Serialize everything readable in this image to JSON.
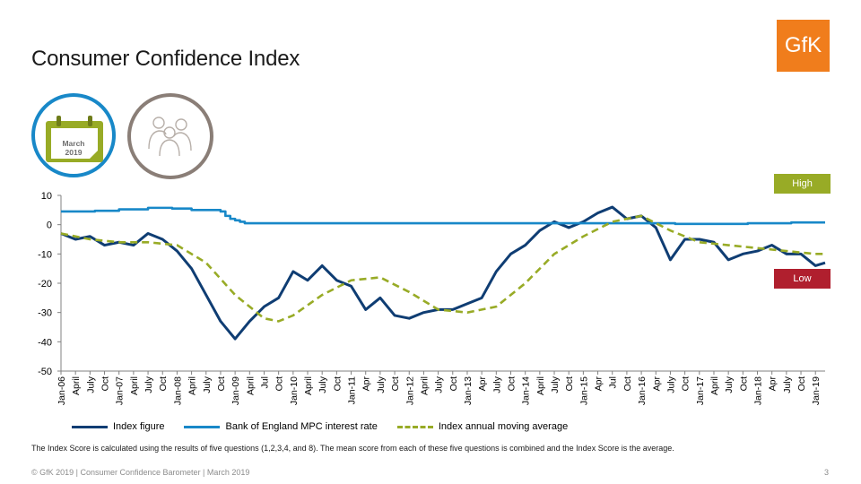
{
  "title": "Consumer Confidence Index",
  "logo": "GfK",
  "calendar": {
    "month": "March",
    "year": "2019"
  },
  "badges": {
    "high": "High",
    "low": "Low"
  },
  "note": "The Index Score is calculated using the results of five questions (1,2,3,4, and 8). The mean score from each of these five questions is combined and the Index Score is the average.",
  "footer": "© GfK 2019 | Consumer Confidence Barometer | March 2019",
  "page_number": "3",
  "colors": {
    "index": "#0f3d73",
    "rate": "#1888c8",
    "moving_avg": "#98ab26",
    "accent": "#f07d1c"
  },
  "chart_data": {
    "type": "line",
    "ylim": [
      -50,
      10
    ],
    "yticks": [
      10,
      0,
      -10,
      -20,
      -30,
      -40,
      -50
    ],
    "x_start": "Jan-06",
    "x_end": "Mar-19",
    "x_tick_labels": [
      "Jan-06",
      "April",
      "July",
      "Oct",
      "Jan-07",
      "April",
      "July",
      "Oct",
      "Jan-08",
      "April",
      "July",
      "Oct",
      "Jan-09",
      "April",
      "Jul",
      "Oct",
      "Jan-10",
      "April",
      "July",
      "Oct",
      "Jan-11",
      "Apr",
      "July",
      "Oct",
      "Jan-12",
      "April",
      "July",
      "Oct",
      "Jan-13",
      "Apr",
      "July",
      "Oct",
      "Jan-14",
      "April",
      "July",
      "Oct",
      "Jan-15",
      "Apr",
      "Jul",
      "Oct",
      "Jan-16",
      "Apr",
      "July",
      "Oct",
      "Jan-17",
      "April",
      "July",
      "Oct",
      "Jan-18",
      "Apr",
      "July",
      "Oct",
      "Jan-19"
    ],
    "series": [
      {
        "name": "Index figure",
        "style": "solid",
        "points": [
          [
            "Jan-06",
            -3
          ],
          [
            "Apr-06",
            -5
          ],
          [
            "Jul-06",
            -4
          ],
          [
            "Oct-06",
            -7
          ],
          [
            "Jan-07",
            -6
          ],
          [
            "Apr-07",
            -7
          ],
          [
            "Jul-07",
            -3
          ],
          [
            "Oct-07",
            -5
          ],
          [
            "Jan-08",
            -9
          ],
          [
            "Apr-08",
            -15
          ],
          [
            "Jul-08",
            -24
          ],
          [
            "Oct-08",
            -33
          ],
          [
            "Jan-09",
            -39
          ],
          [
            "Apr-09",
            -33
          ],
          [
            "Jul-09",
            -28
          ],
          [
            "Oct-09",
            -25
          ],
          [
            "Jan-10",
            -16
          ],
          [
            "Apr-10",
            -19
          ],
          [
            "Jul-10",
            -14
          ],
          [
            "Oct-10",
            -19
          ],
          [
            "Jan-11",
            -21
          ],
          [
            "Apr-11",
            -29
          ],
          [
            "Jul-11",
            -25
          ],
          [
            "Oct-11",
            -31
          ],
          [
            "Jan-12",
            -32
          ],
          [
            "Apr-12",
            -30
          ],
          [
            "Jul-12",
            -29
          ],
          [
            "Oct-12",
            -29
          ],
          [
            "Jan-13",
            -27
          ],
          [
            "Apr-13",
            -25
          ],
          [
            "Jul-13",
            -16
          ],
          [
            "Oct-13",
            -10
          ],
          [
            "Jan-14",
            -7
          ],
          [
            "Apr-14",
            -2
          ],
          [
            "Jul-14",
            1
          ],
          [
            "Oct-14",
            -1
          ],
          [
            "Jan-15",
            1
          ],
          [
            "Apr-15",
            4
          ],
          [
            "Jul-15",
            6
          ],
          [
            "Oct-15",
            2
          ],
          [
            "Jan-16",
            3
          ],
          [
            "Apr-16",
            -1
          ],
          [
            "Jul-16",
            -12
          ],
          [
            "Oct-16",
            -5
          ],
          [
            "Jan-17",
            -5
          ],
          [
            "Apr-17",
            -6
          ],
          [
            "Jul-17",
            -12
          ],
          [
            "Oct-17",
            -10
          ],
          [
            "Jan-18",
            -9
          ],
          [
            "Apr-18",
            -7
          ],
          [
            "Jul-18",
            -10
          ],
          [
            "Oct-18",
            -10
          ],
          [
            "Jan-19",
            -14
          ],
          [
            "Mar-19",
            -13
          ]
        ]
      },
      {
        "name": "Bank of England MPC interest rate",
        "style": "solid",
        "points": [
          [
            "Jan-06",
            4.5
          ],
          [
            "Aug-06",
            4.75
          ],
          [
            "Jan-07",
            5.25
          ],
          [
            "Jul-07",
            5.75
          ],
          [
            "Dec-07",
            5.5
          ],
          [
            "Apr-08",
            5.0
          ],
          [
            "Oct-08",
            4.5
          ],
          [
            "Nov-08",
            3.0
          ],
          [
            "Dec-08",
            2.0
          ],
          [
            "Jan-09",
            1.5
          ],
          [
            "Feb-09",
            1.0
          ],
          [
            "Mar-09",
            0.5
          ],
          [
            "Aug-16",
            0.25
          ],
          [
            "Nov-17",
            0.5
          ],
          [
            "Aug-18",
            0.75
          ],
          [
            "Mar-19",
            0.75
          ]
        ]
      },
      {
        "name": "Index annual moving average",
        "style": "dashed",
        "points": [
          [
            "Jan-06",
            -3
          ],
          [
            "Jul-06",
            -5
          ],
          [
            "Jan-07",
            -6
          ],
          [
            "Jul-07",
            -6
          ],
          [
            "Jan-08",
            -7
          ],
          [
            "Jul-08",
            -13
          ],
          [
            "Jan-09",
            -24
          ],
          [
            "Jul-09",
            -32
          ],
          [
            "Oct-09",
            -33
          ],
          [
            "Jan-10",
            -31
          ],
          [
            "Jul-10",
            -24
          ],
          [
            "Jan-11",
            -19
          ],
          [
            "Jul-11",
            -18
          ],
          [
            "Jan-12",
            -23
          ],
          [
            "Jul-12",
            -29
          ],
          [
            "Jan-13",
            -30
          ],
          [
            "Jul-13",
            -28
          ],
          [
            "Jan-14",
            -20
          ],
          [
            "Jul-14",
            -10
          ],
          [
            "Jan-15",
            -4
          ],
          [
            "Jul-15",
            1
          ],
          [
            "Jan-16",
            3
          ],
          [
            "Jul-16",
            -2
          ],
          [
            "Jan-17",
            -6
          ],
          [
            "Jul-17",
            -7
          ],
          [
            "Jan-18",
            -8
          ],
          [
            "Jul-18",
            -9
          ],
          [
            "Jan-19",
            -10
          ],
          [
            "Mar-19",
            -10
          ]
        ]
      }
    ]
  }
}
